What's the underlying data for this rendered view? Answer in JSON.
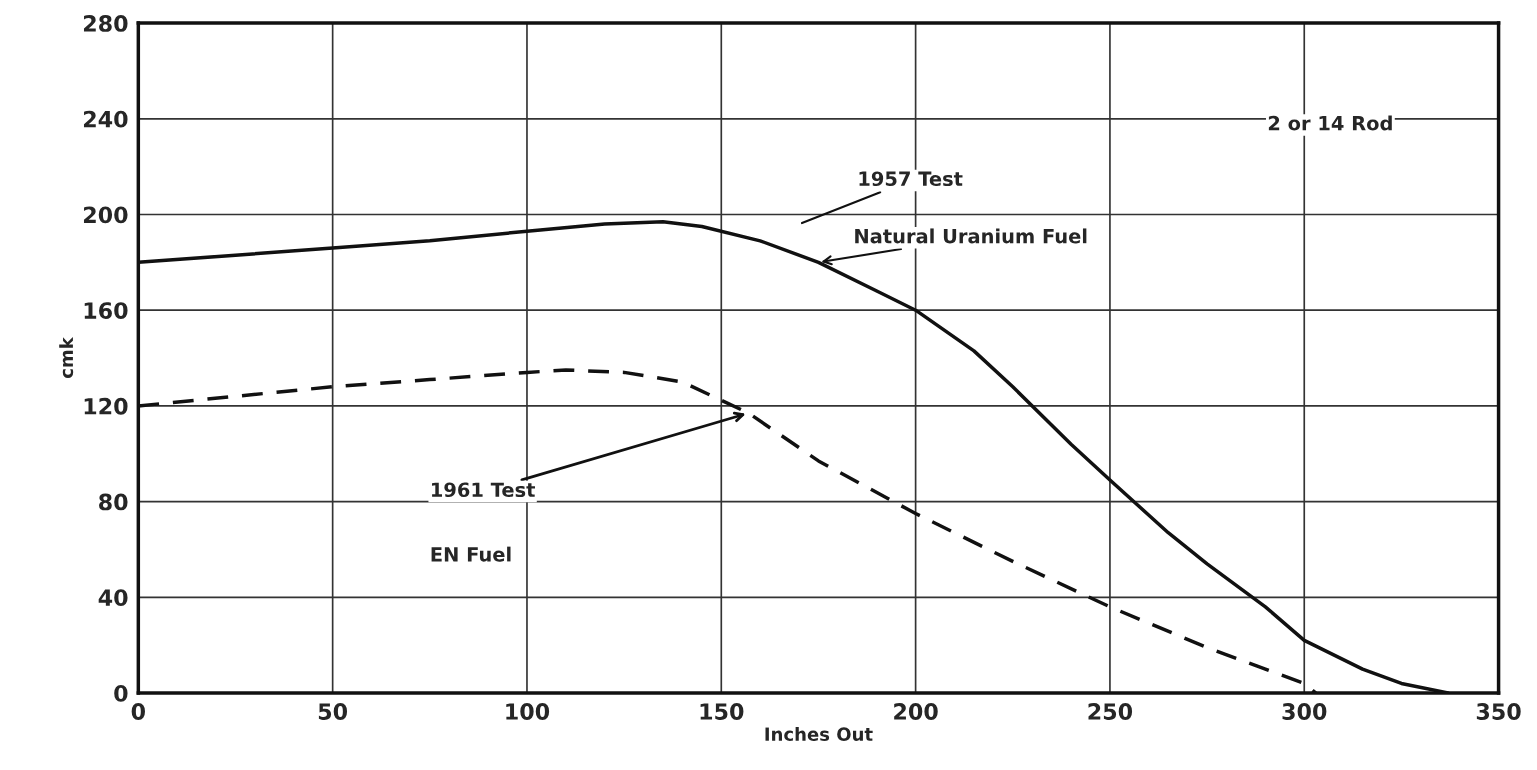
{
  "chart_data": {
    "type": "line",
    "xlabel": "Inches Out",
    "ylabel": "cmk",
    "xlim": [
      0,
      350
    ],
    "xticks": [
      0,
      50,
      100,
      150,
      200,
      250,
      300,
      350
    ],
    "ylim": [
      0,
      280
    ],
    "yticks": [
      0,
      40,
      80,
      120,
      160,
      200,
      240,
      280
    ],
    "grid": true,
    "series": [
      {
        "color": "#111111",
        "line_style": "solid",
        "x": [
          0,
          25,
          50,
          75,
          100,
          120,
          135,
          145,
          160,
          175,
          190,
          200,
          215,
          225,
          240,
          250,
          265,
          275,
          290,
          300,
          315,
          325,
          337
        ],
        "values": [
          180,
          183,
          186,
          189,
          193,
          196,
          197,
          195,
          189,
          180,
          168,
          160,
          143,
          128,
          104,
          89,
          67,
          54,
          36,
          22,
          10,
          4,
          0
        ]
      },
      {
        "color": "#111111",
        "line_style": "dashed",
        "x": [
          0,
          25,
          50,
          75,
          100,
          110,
          125,
          140,
          157,
          175,
          200,
          225,
          250,
          275,
          290,
          300,
          303
        ],
        "values": [
          120,
          124,
          128,
          131,
          134,
          135,
          134,
          130,
          117,
          97,
          75,
          55,
          36,
          19,
          10,
          4,
          0
        ]
      }
    ],
    "annotations": [
      "2 or 14 Rod",
      "1957 Test",
      {
        "text": "Natural Uranium Fuel",
        "x": 175,
        "y": 180
      },
      {
        "text": "1961 Test",
        "x": 157,
        "y": 117
      },
      "EN Fuel"
    ]
  }
}
